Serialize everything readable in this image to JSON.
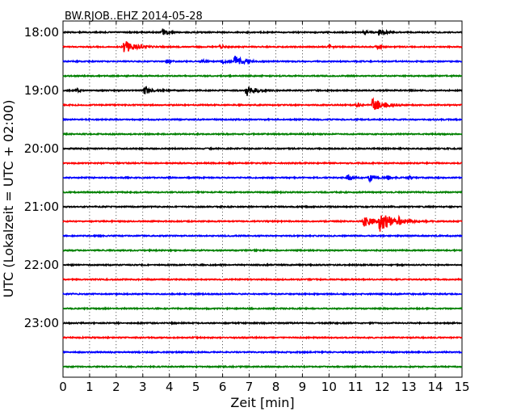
{
  "chart_data": {
    "type": "line",
    "title": "BW.RJOB..EHZ 2014-05-28",
    "xlabel": "Zeit  [min]",
    "ylabel": "UTC (Lokalzeit = UTC + 02:00)",
    "xlim": [
      0,
      15
    ],
    "x_ticks": [
      0,
      1,
      2,
      3,
      4,
      5,
      6,
      7,
      8,
      9,
      10,
      11,
      12,
      13,
      14,
      15
    ],
    "y_tick_labels": [
      "18:00",
      "19:00",
      "20:00",
      "21:00",
      "22:00",
      "23:00"
    ],
    "grid": "vertical dotted",
    "trace_interval_minutes": 15,
    "trace_colors": [
      "#000000",
      "#ff0000",
      "#0000ff",
      "#008000"
    ],
    "traces": [
      {
        "start": "18:00",
        "events": [
          {
            "minute": 3.75,
            "amplitude": 0.45
          },
          {
            "minute": 11.3,
            "amplitude": 0.3
          },
          {
            "minute": 11.85,
            "amplitude": 0.55
          }
        ]
      },
      {
        "start": "18:15",
        "events": [
          {
            "minute": 2.3,
            "amplitude": 0.9
          },
          {
            "minute": 5.9,
            "amplitude": 0.3
          },
          {
            "minute": 10.0,
            "amplitude": 0.25
          },
          {
            "minute": 11.8,
            "amplitude": 0.3
          }
        ]
      },
      {
        "start": "18:30",
        "events": [
          {
            "minute": 3.9,
            "amplitude": 0.3
          },
          {
            "minute": 5.2,
            "amplitude": 0.2
          },
          {
            "minute": 6.0,
            "amplitude": 0.35
          },
          {
            "minute": 6.45,
            "amplitude": 0.75
          }
        ]
      },
      {
        "start": "18:45",
        "events": []
      },
      {
        "start": "19:00",
        "events": [
          {
            "minute": 0.5,
            "amplitude": 0.3
          },
          {
            "minute": 3.05,
            "amplitude": 0.6
          },
          {
            "minute": 6.9,
            "amplitude": 0.8
          }
        ]
      },
      {
        "start": "19:15",
        "events": [
          {
            "minute": 11.0,
            "amplitude": 0.25
          },
          {
            "minute": 11.65,
            "amplitude": 1.0
          }
        ]
      },
      {
        "start": "19:30",
        "events": []
      },
      {
        "start": "19:45",
        "events": []
      },
      {
        "start": "20:00",
        "events": []
      },
      {
        "start": "20:15",
        "events": []
      },
      {
        "start": "20:30",
        "events": [
          {
            "minute": 10.7,
            "amplitude": 0.45
          },
          {
            "minute": 11.5,
            "amplitude": 0.5
          },
          {
            "minute": 12.2,
            "amplitude": 0.35
          },
          {
            "minute": 13.0,
            "amplitude": 0.25
          }
        ]
      },
      {
        "start": "20:45",
        "events": []
      },
      {
        "start": "21:00",
        "events": []
      },
      {
        "start": "21:15",
        "events": [
          {
            "minute": 11.3,
            "amplitude": 0.9
          },
          {
            "minute": 11.9,
            "amplitude": 1.3
          },
          {
            "minute": 12.6,
            "amplitude": 0.4
          }
        ]
      },
      {
        "start": "21:30",
        "events": []
      },
      {
        "start": "21:45",
        "events": []
      },
      {
        "start": "22:00",
        "events": []
      },
      {
        "start": "22:15",
        "events": []
      },
      {
        "start": "22:30",
        "events": []
      },
      {
        "start": "22:45",
        "events": []
      },
      {
        "start": "23:00",
        "events": []
      },
      {
        "start": "23:15",
        "events": []
      },
      {
        "start": "23:30",
        "events": []
      },
      {
        "start": "23:45",
        "events": []
      }
    ]
  }
}
